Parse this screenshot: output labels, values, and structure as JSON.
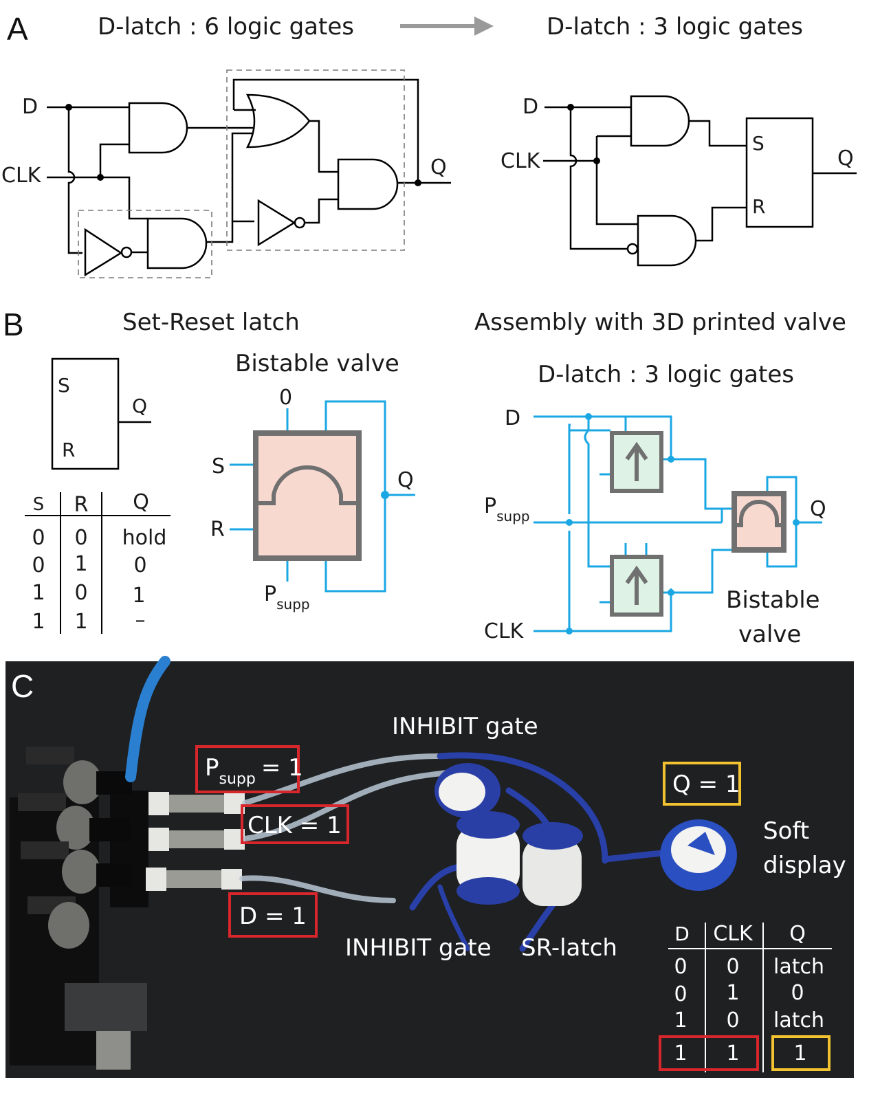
{
  "panel_a": {
    "label": "A",
    "left_title": "D-latch : 6 logic gates",
    "right_title": "D-latch : 3 logic gates",
    "in_d": "D",
    "in_clk": "CLK",
    "out_q": "Q",
    "sr_s": "S",
    "sr_r": "R"
  },
  "panel_b": {
    "label": "B",
    "sr_title": "Set-Reset latch",
    "sr_s": "S",
    "sr_r": "R",
    "sr_q": "Q",
    "table_headers": [
      "S",
      "R",
      "Q"
    ],
    "table_rows": [
      [
        "0",
        "0",
        "hold"
      ],
      [
        "0",
        "1",
        "0"
      ],
      [
        "1",
        "0",
        "1"
      ],
      [
        "1",
        "1",
        "–"
      ]
    ],
    "bistable_title": "Bistable valve",
    "valve_zero": "0",
    "valve_s": "S",
    "valve_r": "R",
    "valve_q": "Q",
    "psupp_p": "P",
    "psupp_sub": "supp",
    "assembly_title": "Assembly with 3D printed valve",
    "assembly_subtitle": "D-latch : 3 logic gates",
    "asm_d": "D",
    "asm_clk": "CLK",
    "asm_q": "Q",
    "asm_psupp_p": "P",
    "asm_psupp_sub": "supp",
    "asm_bistable_1": "Bistable",
    "asm_bistable_2": "valve"
  },
  "panel_c": {
    "label": "C",
    "inhibit_top": "INHIBIT gate",
    "inhibit_bottom": "INHIBIT gate",
    "sr_latch": "SR-latch",
    "psupp_p": "P",
    "psupp_sub": "supp",
    "psupp_val": "= 1",
    "clk_label": "CLK = 1",
    "d_label": "D = 1",
    "q_label": "Q = 1",
    "soft_1": "Soft",
    "soft_2": "display",
    "table_headers": [
      "D",
      "CLK",
      "Q"
    ],
    "table_rows": [
      [
        "0",
        "0",
        "latch"
      ],
      [
        "0",
        "1",
        "0"
      ],
      [
        "1",
        "0",
        "latch"
      ],
      [
        "1",
        "1",
        "1"
      ]
    ],
    "colors": {
      "red_box": "#d7262c",
      "yellow_box": "#f2c230",
      "tube_blue": "#1f3a9e"
    }
  }
}
